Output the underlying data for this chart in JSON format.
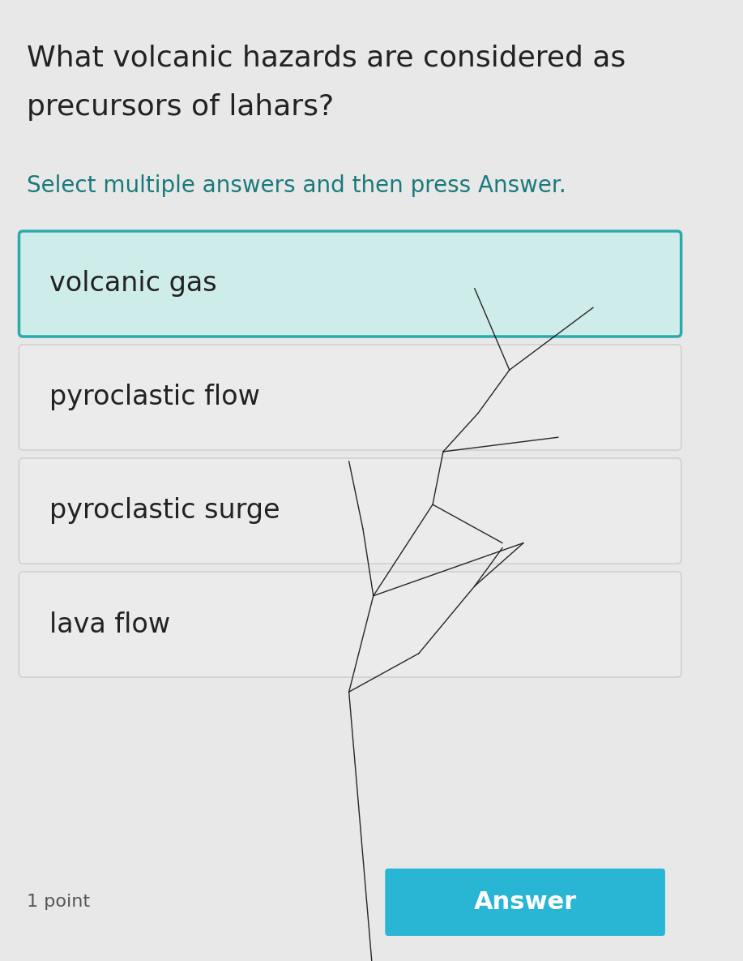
{
  "background_color": "#e8e8e8",
  "title_line1": "What volcanic hazards are considered as",
  "title_line2": "precursors of lahars?",
  "subtitle": "Select multiple answers and then press Answer.",
  "options": [
    "volcanic gas",
    "pyroclastic flow",
    "pyroclastic surge",
    "lava flow"
  ],
  "selected_option": 0,
  "selected_bg": "#ceecea",
  "selected_border": "#2aabab",
  "unselected_bg": "#ebebeb",
  "unselected_border": "#cccccc",
  "option_text_color": "#222222",
  "title_color": "#222222",
  "subtitle_color": "#1a7a7a",
  "answer_button_color": "#29b6d4",
  "answer_button_text": "Answer",
  "point_text": "1 point",
  "title_fontsize": 26,
  "subtitle_fontsize": 20,
  "option_fontsize": 24,
  "answer_fontsize": 22,
  "crack_lines": [
    [
      [
        0.535,
        1.02
      ],
      [
        0.5,
        0.72
      ]
    ],
    [
      [
        0.5,
        0.72
      ],
      [
        0.535,
        0.62
      ]
    ],
    [
      [
        0.535,
        0.62
      ],
      [
        0.75,
        0.565
      ]
    ],
    [
      [
        0.535,
        0.62
      ],
      [
        0.62,
        0.525
      ]
    ],
    [
      [
        0.62,
        0.525
      ],
      [
        0.72,
        0.565
      ]
    ],
    [
      [
        0.62,
        0.525
      ],
      [
        0.635,
        0.47
      ]
    ],
    [
      [
        0.635,
        0.47
      ],
      [
        0.8,
        0.455
      ]
    ],
    [
      [
        0.635,
        0.47
      ],
      [
        0.685,
        0.43
      ]
    ],
    [
      [
        0.685,
        0.43
      ],
      [
        0.73,
        0.385
      ]
    ],
    [
      [
        0.73,
        0.385
      ],
      [
        0.85,
        0.32
      ]
    ],
    [
      [
        0.73,
        0.385
      ],
      [
        0.68,
        0.3
      ]
    ],
    [
      [
        0.535,
        0.62
      ],
      [
        0.52,
        0.55
      ]
    ],
    [
      [
        0.52,
        0.55
      ],
      [
        0.5,
        0.48
      ]
    ],
    [
      [
        0.5,
        0.72
      ],
      [
        0.6,
        0.68
      ]
    ],
    [
      [
        0.6,
        0.68
      ],
      [
        0.68,
        0.61
      ]
    ],
    [
      [
        0.68,
        0.61
      ],
      [
        0.75,
        0.565
      ]
    ],
    [
      [
        0.68,
        0.61
      ],
      [
        0.72,
        0.57
      ]
    ]
  ]
}
